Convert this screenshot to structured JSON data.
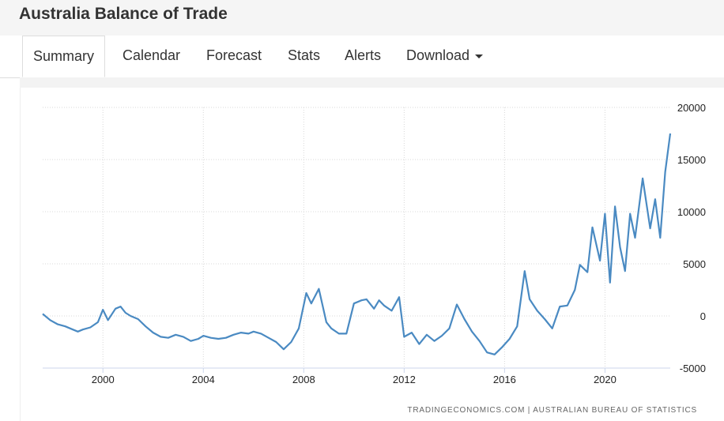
{
  "page": {
    "title": "Australia Balance of Trade"
  },
  "tabs": [
    {
      "label": "Summary",
      "active": true
    },
    {
      "label": "Calendar"
    },
    {
      "label": "Forecast"
    },
    {
      "label": "Stats"
    },
    {
      "label": "Alerts"
    },
    {
      "label": "Download",
      "dropdown": true
    }
  ],
  "chart_data": {
    "type": "line",
    "title": "",
    "xlabel": "",
    "ylabel": "",
    "xlim": [
      1997.6,
      2022.6
    ],
    "ylim": [
      -5000,
      20000
    ],
    "x_ticks": [
      2000,
      2004,
      2008,
      2012,
      2016,
      2020
    ],
    "y_ticks": [
      20000,
      15000,
      10000,
      5000,
      0,
      -5000
    ],
    "grid": true,
    "line_color": "#4a8ac2",
    "source": "TRADINGECONOMICS.COM  |  AUSTRALIAN BUREAU OF STATISTICS",
    "series": [
      {
        "x": [
          1997.6,
          1997.9,
          1998.2,
          1998.5,
          1998.8,
          1999.0,
          1999.2,
          1999.5,
          1999.8,
          2000.0,
          2000.2,
          2000.5,
          2000.7,
          2000.9,
          2001.1,
          2001.4,
          2001.7,
          2002.0,
          2002.3,
          2002.6,
          2002.9,
          2003.2,
          2003.5,
          2003.8,
          2004.0,
          2004.3,
          2004.6,
          2004.9,
          2005.2,
          2005.5,
          2005.8,
          2006.0,
          2006.3,
          2006.6,
          2006.9,
          2007.2,
          2007.5,
          2007.8,
          2008.1,
          2008.3,
          2008.6,
          2008.9,
          2009.1,
          2009.4,
          2009.7,
          2010.0,
          2010.3,
          2010.5,
          2010.8,
          2011.0,
          2011.2,
          2011.5,
          2011.8,
          2012.0,
          2012.3,
          2012.6,
          2012.9,
          2013.2,
          2013.5,
          2013.8,
          2014.1,
          2014.4,
          2014.7,
          2015.0,
          2015.3,
          2015.6,
          2015.9,
          2016.2,
          2016.5,
          2016.8,
          2017.0,
          2017.3,
          2017.6,
          2017.9,
          2018.2,
          2018.5,
          2018.8,
          2019.0,
          2019.3,
          2019.5,
          2019.8,
          2020.0,
          2020.2,
          2020.4,
          2020.6,
          2020.8,
          2021.0,
          2021.2,
          2021.5,
          2021.8,
          2022.0,
          2022.2,
          2022.4,
          2022.6
        ],
        "values": [
          200,
          -400,
          -800,
          -1000,
          -1300,
          -1500,
          -1300,
          -1100,
          -600,
          600,
          -400,
          700,
          900,
          300,
          0,
          -300,
          -1000,
          -1600,
          -2000,
          -2100,
          -1800,
          -2000,
          -2400,
          -2200,
          -1900,
          -2100,
          -2200,
          -2100,
          -1800,
          -1600,
          -1700,
          -1500,
          -1700,
          -2100,
          -2500,
          -3200,
          -2500,
          -1200,
          2200,
          1200,
          2600,
          -600,
          -1200,
          -1700,
          -1700,
          1200,
          1500,
          1600,
          700,
          1500,
          1000,
          500,
          1800,
          -2000,
          -1600,
          -2700,
          -1800,
          -2400,
          -1900,
          -1200,
          1100,
          -300,
          -1500,
          -2400,
          -3500,
          -3700,
          -3000,
          -2200,
          -1000,
          4300,
          1600,
          500,
          -300,
          -1200,
          900,
          1000,
          2500,
          4900,
          4200,
          8500,
          5300,
          9800,
          3200,
          10500,
          6600,
          4300,
          9800,
          7500,
          13200,
          8400,
          11200,
          7500,
          13800,
          17500
        ]
      }
    ]
  }
}
